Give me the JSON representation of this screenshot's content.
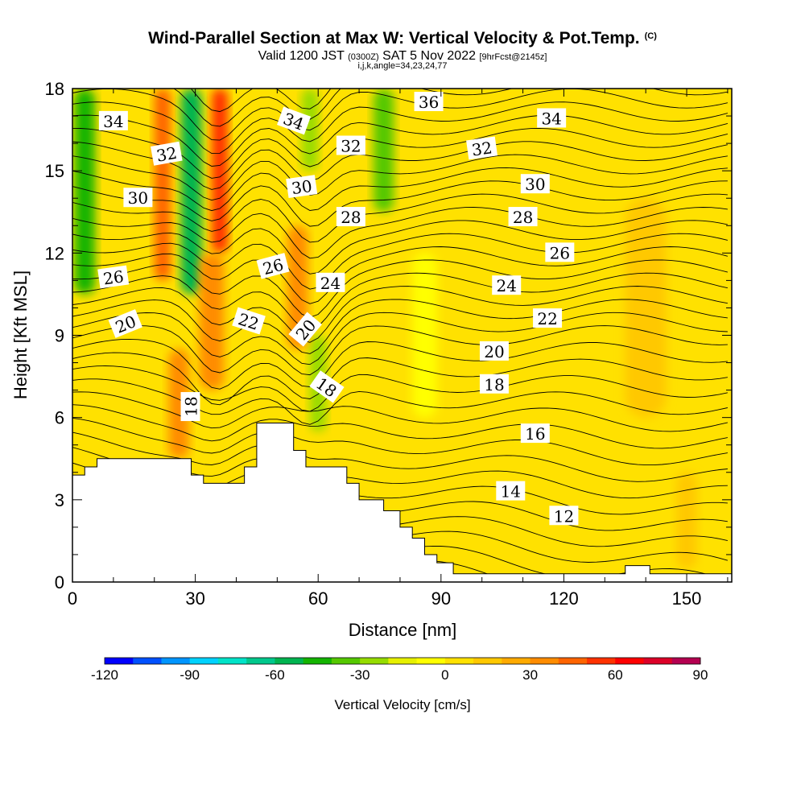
{
  "title": {
    "main": "Wind-Parallel Section at Max W: Vertical Velocity & Pot.Temp.",
    "copyright": "(C)",
    "valid_prefix": "Valid 1200 JST",
    "valid_utc": "(0300Z)",
    "valid_date": "SAT 5 Nov 2022",
    "forecast": "[9hrFcst@2145z]",
    "indices": "i,j,k,angle=34,23,24,77"
  },
  "chart_data": {
    "type": "heatmap",
    "xlabel": "Distance [nm]",
    "ylabel": "Height [Kft MSL]",
    "xlim": [
      0,
      161
    ],
    "ylim": [
      0,
      18
    ],
    "x_ticks": [
      "0",
      "30",
      "60",
      "90",
      "120",
      "150"
    ],
    "y_ticks": [
      "0",
      "3",
      "6",
      "9",
      "12",
      "15",
      "18"
    ],
    "colorbar": {
      "label": "Vertical Velocity [cm/s]",
      "min": -120,
      "max": 90,
      "step": 10,
      "tick_labels": [
        "-120",
        "-90",
        "-60",
        "-30",
        "0",
        "30",
        "60",
        "90"
      ],
      "colors": [
        "#0000ff",
        "#0050ff",
        "#0095ff",
        "#00d2ff",
        "#00e3c8",
        "#00c88c",
        "#00b450",
        "#14b400",
        "#55c800",
        "#96dc00",
        "#e6f000",
        "#ffff00",
        "#ffe100",
        "#ffc800",
        "#ffaa00",
        "#ff8c00",
        "#ff6400",
        "#ff3200",
        "#ff0000",
        "#dc0028",
        "#b40050",
        "#82008c",
        "#5a00a0"
      ]
    },
    "terrain_kft": [
      [
        0,
        3.9
      ],
      [
        3,
        3.9
      ],
      [
        3,
        4.2
      ],
      [
        6,
        4.2
      ],
      [
        6,
        4.5
      ],
      [
        29,
        4.5
      ],
      [
        29,
        3.9
      ],
      [
        32,
        3.9
      ],
      [
        32,
        3.6
      ],
      [
        42,
        3.6
      ],
      [
        42,
        4.2
      ],
      [
        45,
        4.2
      ],
      [
        45,
        5.8
      ],
      [
        54,
        5.8
      ],
      [
        54,
        4.8
      ],
      [
        57,
        4.8
      ],
      [
        57,
        4.2
      ],
      [
        67,
        4.2
      ],
      [
        67,
        3.6
      ],
      [
        70,
        3.6
      ],
      [
        70,
        3.0
      ],
      [
        76,
        3.0
      ],
      [
        76,
        2.6
      ],
      [
        80,
        2.6
      ],
      [
        80,
        2.0
      ],
      [
        83,
        2.0
      ],
      [
        83,
        1.6
      ],
      [
        86,
        1.6
      ],
      [
        86,
        1.0
      ],
      [
        89,
        1.0
      ],
      [
        89,
        0.7
      ],
      [
        93,
        0.7
      ],
      [
        93,
        0.3
      ],
      [
        135,
        0.3
      ],
      [
        135,
        0.6
      ],
      [
        141,
        0.6
      ],
      [
        141,
        0.3
      ],
      [
        161,
        0.3
      ]
    ],
    "theta_labels": [
      {
        "value": "34",
        "x": 10,
        "y": 16.8,
        "rot": 0
      },
      {
        "value": "32",
        "x": 23,
        "y": 15.6,
        "rot": -10
      },
      {
        "value": "30",
        "x": 16,
        "y": 14.0,
        "rot": 0
      },
      {
        "value": "26",
        "x": 10,
        "y": 11.1,
        "rot": -8
      },
      {
        "value": "20",
        "x": 13,
        "y": 9.4,
        "rot": -22
      },
      {
        "value": "18",
        "x": 29,
        "y": 6.4,
        "rot": -90
      },
      {
        "value": "22",
        "x": 43,
        "y": 9.5,
        "rot": 18
      },
      {
        "value": "26",
        "x": 49,
        "y": 11.5,
        "rot": -15
      },
      {
        "value": "34",
        "x": 54,
        "y": 16.8,
        "rot": 20
      },
      {
        "value": "30",
        "x": 56,
        "y": 14.4,
        "rot": -8
      },
      {
        "value": "32",
        "x": 68,
        "y": 15.9,
        "rot": 0
      },
      {
        "value": "28",
        "x": 68,
        "y": 13.3,
        "rot": 0
      },
      {
        "value": "24",
        "x": 63,
        "y": 10.9,
        "rot": 0
      },
      {
        "value": "20",
        "x": 57,
        "y": 9.2,
        "rot": -50
      },
      {
        "value": "18",
        "x": 62,
        "y": 7.1,
        "rot": 35
      },
      {
        "value": "36",
        "x": 87,
        "y": 17.5,
        "rot": 0
      },
      {
        "value": "34",
        "x": 117,
        "y": 16.9,
        "rot": 0
      },
      {
        "value": "32",
        "x": 100,
        "y": 15.8,
        "rot": -8
      },
      {
        "value": "30",
        "x": 113,
        "y": 14.5,
        "rot": 0
      },
      {
        "value": "28",
        "x": 110,
        "y": 13.3,
        "rot": 0
      },
      {
        "value": "26",
        "x": 119,
        "y": 12.0,
        "rot": 0
      },
      {
        "value": "24",
        "x": 106,
        "y": 10.8,
        "rot": 0
      },
      {
        "value": "22",
        "x": 116,
        "y": 9.6,
        "rot": 0
      },
      {
        "value": "20",
        "x": 103,
        "y": 8.4,
        "rot": 0
      },
      {
        "value": "18",
        "x": 103,
        "y": 7.2,
        "rot": 0
      },
      {
        "value": "16",
        "x": 113,
        "y": 5.4,
        "rot": 0
      },
      {
        "value": "14",
        "x": 107,
        "y": 3.3,
        "rot": 0
      },
      {
        "value": "12",
        "x": 120,
        "y": 2.4,
        "rot": 0
      }
    ],
    "w_features": [
      {
        "x": 3,
        "w": 5,
        "y0": 10.5,
        "y1": 18,
        "value": -45
      },
      {
        "x": 29,
        "w": 5,
        "y0": 10.5,
        "y1": 18,
        "value": -55
      },
      {
        "x": 36,
        "w": 4,
        "y0": 12,
        "y1": 18,
        "value": 55
      },
      {
        "x": 34,
        "w": 6,
        "y0": 7,
        "y1": 12,
        "value": 30
      },
      {
        "x": 22,
        "w": 4,
        "y0": 11,
        "y1": 18,
        "value": 40
      },
      {
        "x": 58,
        "w": 4,
        "y0": 15,
        "y1": 18,
        "value": -30
      },
      {
        "x": 76,
        "w": 5,
        "y0": 13.5,
        "y1": 18,
        "value": -35
      },
      {
        "x": 60,
        "w": 4,
        "y0": 5.5,
        "y1": 9,
        "value": -25
      },
      {
        "x": 26,
        "w": 5,
        "y0": 4.5,
        "y1": 8.5,
        "value": 35
      },
      {
        "x": 55,
        "w": 5,
        "y0": 8.5,
        "y1": 13,
        "value": 30
      },
      {
        "x": 86,
        "w": 6,
        "y0": 6,
        "y1": 12,
        "value": -8
      },
      {
        "x": 140,
        "w": 10,
        "y0": 6,
        "y1": 14,
        "value": 12
      },
      {
        "x": 150,
        "w": 5,
        "y0": 0.5,
        "y1": 4,
        "value": 18
      }
    ],
    "background_w": 5,
    "grid": false
  }
}
